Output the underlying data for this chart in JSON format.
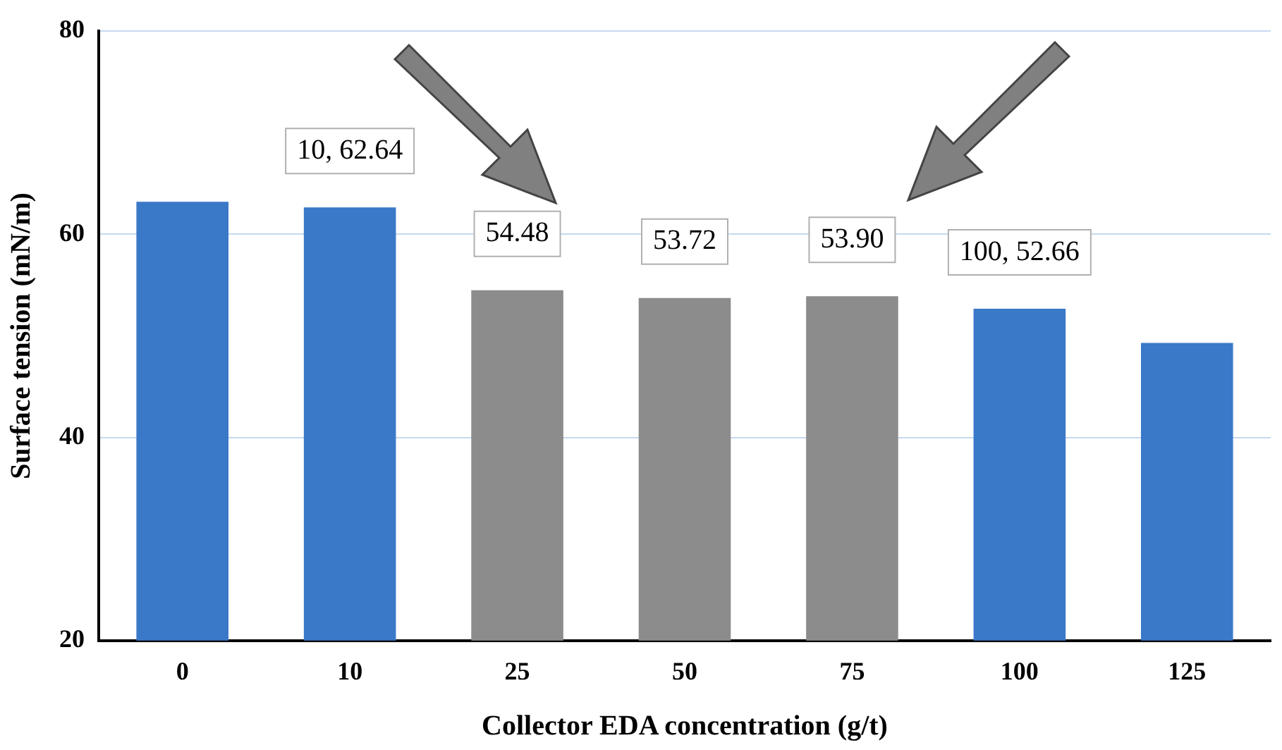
{
  "chart_data": {
    "type": "bar",
    "xlabel": "Collector EDA concentration (g/t)",
    "ylabel": "Surface tension (mN/m)",
    "categories": [
      "0",
      "10",
      "25",
      "50",
      "75",
      "100",
      "125"
    ],
    "values": [
      63.2,
      62.64,
      54.48,
      53.72,
      53.9,
      52.66,
      49.3
    ],
    "colors": [
      "#3a78c8",
      "#3a78c8",
      "#8c8c8c",
      "#8c8c8c",
      "#8c8c8c",
      "#3a78c8",
      "#3a78c8"
    ],
    "value_labels": [
      null,
      "10, 62.64",
      "54.48",
      "53.72",
      "53.90",
      "100, 52.66",
      null
    ],
    "ylim": [
      20,
      80
    ],
    "yticks": [
      20,
      40,
      60,
      80
    ],
    "grid": "y",
    "legend": false
  }
}
